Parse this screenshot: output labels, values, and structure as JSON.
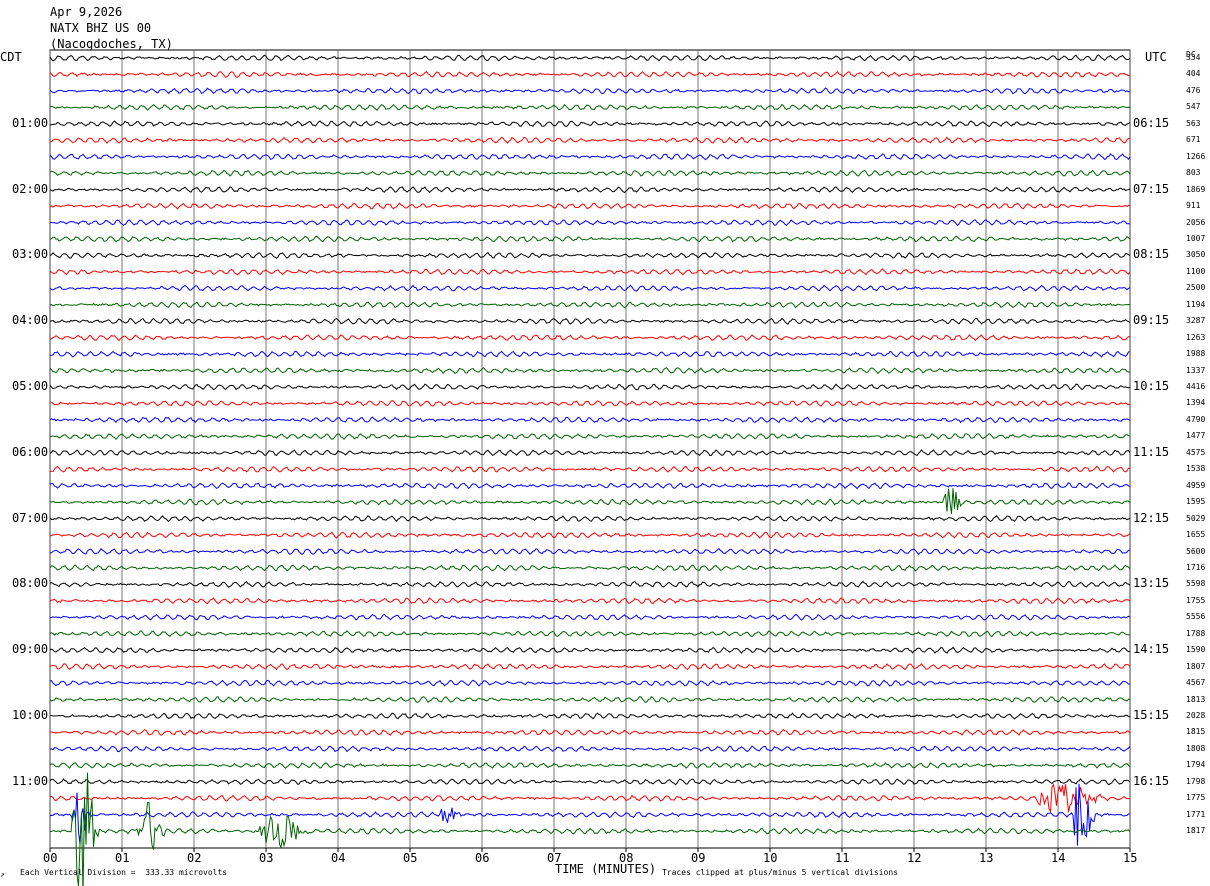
{
  "header": {
    "date": "Apr 9,2026",
    "station": "NATX BHZ US 00",
    "location": "(Nacogdoches, TX)"
  },
  "left_tz": "CDT",
  "right_tz": "UTC",
  "dc_label": "DC",
  "footer": {
    "scale": "Each Vertical Division =  333.33 microvolts",
    "clip": "Traces clipped at plus/minus 5 vertical divisions",
    "corner": "↗"
  },
  "chart_data": {
    "type": "line",
    "title": "",
    "xlabel": "TIME (MINUTES)",
    "ylabel": "",
    "xlim": [
      0,
      15
    ],
    "x_ticks": [
      "00",
      "01",
      "02",
      "03",
      "04",
      "05",
      "06",
      "07",
      "08",
      "09",
      "10",
      "11",
      "12",
      "13",
      "14",
      "15"
    ],
    "grid": true,
    "colors": [
      "#000000",
      "#ff0000",
      "#0000ff",
      "#006400"
    ],
    "left_hour_labels": [
      "01:00",
      "02:00",
      "03:00",
      "04:00",
      "05:00",
      "06:00",
      "07:00",
      "08:00",
      "09:00",
      "10:00",
      "11:00"
    ],
    "right_hour_labels": [
      "06:15",
      "07:15",
      "08:15",
      "09:15",
      "10:15",
      "11:15",
      "12:15",
      "13:15",
      "14:15",
      "15:15",
      "16:15"
    ],
    "dc_offsets": [
      "334",
      "404",
      "476",
      "547",
      "563",
      "671",
      "1266",
      "803",
      "1869",
      "911",
      "2056",
      "1007",
      "3050",
      "1100",
      "2500",
      "1194",
      "3287",
      "1263",
      "1988",
      "1337",
      "4416",
      "1394",
      "4790",
      "1477",
      "4575",
      "1538",
      "4959",
      "1595",
      "5029",
      "1655",
      "5600",
      "1716",
      "5598",
      "1755",
      "5556",
      "1788",
      "1590",
      "1807",
      "4567",
      "1813",
      "2028",
      "1815",
      "1808",
      "1794",
      "1798",
      "1775",
      "1771",
      "1817"
    ],
    "trace_count": 48,
    "events": [
      {
        "trace": 45,
        "start_min": 13.7,
        "end_min": 14.6,
        "amp": 0.8
      },
      {
        "trace": 46,
        "start_min": 14.2,
        "end_min": 14.5,
        "amp": 2.6
      },
      {
        "trace": 47,
        "start_min": 0.3,
        "end_min": 0.7,
        "amp": 3.8
      },
      {
        "trace": 47,
        "start_min": 1.2,
        "end_min": 1.6,
        "amp": 1.6
      },
      {
        "trace": 47,
        "start_min": 2.9,
        "end_min": 3.6,
        "amp": 1.0
      },
      {
        "trace": 46,
        "start_min": 0.3,
        "end_min": 0.6,
        "amp": 1.6
      },
      {
        "trace": 27,
        "start_min": 12.4,
        "end_min": 12.7,
        "amp": 0.8
      },
      {
        "trace": 46,
        "start_min": 5.4,
        "end_min": 5.7,
        "amp": 0.6
      }
    ]
  }
}
